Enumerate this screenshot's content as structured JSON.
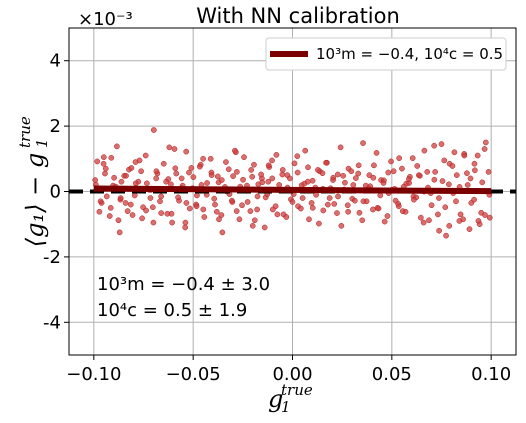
{
  "chart_data": {
    "type": "scatter",
    "title": "With NN calibration",
    "xlabel": "g_1^true",
    "ylabel": "⟨g_1⟩ − g_1^true",
    "x_tick_labels": [
      "−0.10",
      "−0.05",
      "0.00",
      "0.05",
      "0.10"
    ],
    "x_ticks": [
      -0.1,
      -0.05,
      0.0,
      0.05,
      0.1
    ],
    "y_tick_labels": [
      "-4",
      "-2",
      "0",
      "2",
      "4"
    ],
    "y_ticks": [
      -4,
      -2,
      0,
      2,
      4
    ],
    "y_scale_label": "×10⁻³",
    "xlim": [
      -0.1125,
      0.1125
    ],
    "ylim": [
      -5,
      5
    ],
    "grid": true,
    "legend": {
      "position": "top-right",
      "entries": [
        "10³m = −0.4, 10⁴c = 0.5"
      ]
    },
    "annotations": [
      "10³m = −0.4 ± 3.0",
      "10⁴c = 0.5 ± 1.9"
    ],
    "fit_line": {
      "m_1e3": -0.4,
      "c_1e4": 0.5
    },
    "reference_line_y": 0,
    "colors": {
      "points": "#cd3c3c",
      "points_edge": "#b22222",
      "fit_line": "#7a0000",
      "reference": "#000000"
    },
    "points_x": [
      -0.099,
      -0.0972,
      -0.0951,
      -0.0935,
      -0.0912,
      -0.0898,
      -0.0876,
      -0.0861,
      -0.084,
      -0.0823,
      -0.0805,
      -0.0788,
      -0.077,
      -0.0752,
      -0.0733,
      -0.0715,
      -0.0698,
      -0.068,
      -0.0661,
      -0.0643,
      -0.0625,
      -0.0606,
      -0.059,
      -0.0571,
      -0.0553,
      -0.0535,
      -0.0517,
      -0.0499,
      -0.0481,
      -0.0462,
      -0.0444,
      -0.0426,
      -0.0408,
      -0.039,
      -0.0372,
      -0.0353,
      -0.0335,
      -0.0317,
      -0.0299,
      -0.0281,
      -0.0263,
      -0.0244,
      -0.0226,
      -0.0208,
      -0.019,
      -0.0172,
      -0.0154,
      -0.0135,
      -0.0117,
      -0.0099,
      -0.0081,
      -0.0063,
      -0.0045,
      -0.0026,
      -0.0008,
      0.001,
      0.0028,
      0.0046,
      0.0064,
      0.0083,
      0.0101,
      0.0119,
      0.0137,
      0.0155,
      0.0173,
      0.0192,
      0.021,
      0.0228,
      0.0246,
      0.0264,
      0.0282,
      0.0301,
      0.0319,
      0.0337,
      0.0355,
      0.0373,
      0.0391,
      0.041,
      0.0428,
      0.0446,
      0.0464,
      0.0482,
      0.05,
      0.0519,
      0.0537,
      0.0555,
      0.0573,
      0.0591,
      0.0609,
      0.0628,
      0.0646,
      0.0664,
      0.0682,
      0.07,
      0.0718,
      0.0737,
      0.0755,
      0.0773,
      0.0791,
      0.0809,
      0.0827,
      0.0846,
      0.0864,
      0.0882,
      0.09,
      0.0918,
      0.0936,
      0.0955,
      0.0973,
      0.0991,
      -0.0983,
      -0.0961,
      -0.0944,
      -0.092,
      -0.0903,
      -0.0884,
      -0.0866,
      -0.0847,
      -0.083,
      -0.0811,
      -0.0794,
      -0.0776,
      -0.0757,
      -0.0739,
      -0.0721,
      -0.0703,
      -0.0685,
      -0.0667,
      -0.0648,
      -0.063,
      -0.0612,
      -0.0594,
      -0.0576,
      -0.0558,
      -0.0539,
      -0.0521,
      -0.0503,
      -0.0485,
      -0.0467,
      -0.0449,
      -0.043,
      -0.0412,
      -0.0394,
      -0.0376,
      -0.0358,
      -0.034,
      -0.0321,
      -0.0303,
      -0.0285,
      -0.0267,
      -0.0249,
      -0.0231,
      -0.0212,
      -0.0194,
      -0.0176,
      -0.0158,
      -0.014,
      -0.0122,
      -0.0103,
      -0.0085,
      -0.0067,
      -0.0049,
      -0.0031,
      -0.0013,
      0.0006,
      0.0024,
      0.0042,
      0.006,
      0.0078,
      0.0096,
      0.0115,
      0.0133,
      0.0151,
      0.0169,
      0.0187,
      0.0205,
      0.0224,
      0.0242,
      0.026,
      0.0278,
      0.0296,
      0.0314,
      0.0333,
      0.0351,
      0.0369,
      0.0387,
      0.0405,
      0.0423,
      0.0442,
      0.046,
      0.0478,
      0.0496,
      0.0514,
      0.0532,
      0.0551,
      0.0569,
      0.0587,
      0.0605,
      0.0623,
      0.0641,
      0.066,
      0.0678,
      0.0696,
      0.0714,
      0.0732,
      0.075,
      0.0769,
      0.0787,
      0.0805,
      0.0823,
      0.0841,
      0.0859,
      0.0878,
      0.0896,
      0.0914,
      0.0932,
      0.095,
      0.0969,
      0.0987,
      -0.0993,
      -0.0966,
      -0.094,
      -0.0915,
      -0.089,
      -0.0865,
      -0.0838,
      -0.0814,
      -0.0789,
      -0.0762,
      -0.0737,
      -0.0712,
      -0.0686,
      -0.0661,
      -0.0636,
      -0.0609,
      -0.0585,
      -0.0559,
      -0.0534,
      -0.0509,
      -0.0483,
      -0.0458,
      -0.0432,
      -0.0407,
      -0.0381,
      -0.0356,
      -0.0331,
      -0.0305,
      -0.028,
      -0.0254,
      -0.0229,
      -0.0203,
      -0.0178,
      -0.0152,
      -0.0127,
      -0.0102,
      -0.0076,
      -0.0051,
      -0.0025,
      0.0,
      0.0026,
      0.0051,
      0.0077,
      0.0102,
      0.0128,
      0.0153,
      0.0178,
      0.0204,
      0.0229,
      0.0255,
      0.028,
      0.0306,
      0.0331,
      0.0357,
      0.0382,
      0.0407,
      0.0433,
      0.0458,
      0.0484,
      0.0509,
      0.0535,
      0.056,
      0.0586,
      0.0611,
      0.0636,
      0.0662,
      0.0687,
      0.0713,
      0.0738,
      0.0764,
      0.0789,
      0.0815,
      0.084,
      0.0865,
      0.0891,
      0.0916,
      0.0942,
      0.0967,
      0.0993,
      -0.095,
      -0.087,
      -0.079,
      -0.07,
      -0.062,
      -0.054,
      -0.045,
      -0.037,
      -0.029,
      -0.02,
      -0.012,
      -0.004,
      0.005,
      0.013,
      0.021,
      0.03,
      0.038,
      0.046,
      0.055,
      0.063,
      0.071,
      0.08,
      0.088,
      0.096
    ],
    "points_y_1e3": [
      0.21,
      -0.62,
      0.85,
      -0.15,
      1.03,
      0.42,
      -0.88,
      0.3,
      -0.35,
      0.67,
      -0.72,
      0.12,
      0.95,
      -0.48,
      0.25,
      -0.2,
      1.88,
      0.55,
      -0.66,
      0.08,
      0.38,
      -0.95,
      0.71,
      -0.28,
      0.18,
      1.22,
      -0.52,
      0.44,
      -0.12,
      0.82,
      -0.78,
      0.06,
      0.58,
      -0.4,
      0.28,
      -1.25,
      0.9,
      -0.08,
      0.47,
      -0.6,
      0.15,
      1.05,
      -0.32,
      0.66,
      -0.88,
      0.22,
      0.4,
      -0.18,
      0.75,
      -0.55,
      1.12,
      0.03,
      -0.7,
      0.5,
      -0.24,
      0.86,
      -0.45,
      0.19,
      1.25,
      -0.85,
      0.33,
      -0.1,
      0.62,
      -0.58,
      0.88,
      0.1,
      -0.38,
      0.52,
      -1.05,
      0.27,
      0.7,
      -0.22,
      0.41,
      -0.65,
      1.48,
      -0.3,
      0.16,
      0.8,
      -0.5,
      0.35,
      -0.92,
      0.58,
      0.05,
      -0.28,
      1.02,
      -0.6,
      0.24,
      0.45,
      -0.15,
      0.78,
      -0.8,
      1.25,
      0.12,
      -0.42,
      0.6,
      -0.2,
      0.32,
      -1.35,
      0.85,
      -0.05,
      0.5,
      -0.7,
      1.15,
      0.2,
      -0.35,
      0.65,
      -0.9,
      0.28,
      1.5,
      -0.1,
      0.92,
      -0.35,
      0.55,
      -0.75,
      0.18,
      1.38,
      -0.25,
      0.48,
      -0.6,
      0.72,
      -0.12,
      0.3,
      -0.82,
      1.1,
      0.05,
      -0.48,
      0.62,
      -0.3,
      0.85,
      -0.68,
      0.22,
      1.3,
      -0.18,
      0.4,
      -0.95,
      0.58,
      0.1,
      -0.4,
      0.76,
      -0.55,
      0.26,
      1.0,
      -0.22,
      0.46,
      -0.72,
      0.14,
      0.68,
      -0.32,
      1.2,
      -0.85,
      0.36,
      0.02,
      -0.6,
      0.82,
      -0.15,
      0.52,
      -1.1,
      0.3,
      0.95,
      -0.45,
      0.2,
      0.66,
      -0.78,
      0.4,
      -0.08,
      1.08,
      -0.52,
      0.24,
      0.74,
      -0.35,
      0.12,
      -0.98,
      0.56,
      0.88,
      -0.2,
      0.42,
      -0.66,
      1.35,
      0.06,
      -0.42,
      0.62,
      -0.28,
      0.8,
      -0.88,
      0.18,
      0.5,
      -0.55,
      1.18,
      -0.12,
      0.34,
      -0.75,
      0.92,
      0.08,
      -0.38,
      0.7,
      -0.62,
      0.26,
      1.02,
      -0.18,
      0.48,
      -0.95,
      0.6,
      -0.05,
      0.36,
      -0.7,
      1.45,
      -0.48,
      0.22,
      0.78,
      -0.3,
      0.14,
      -0.85,
      0.56,
      0.4,
      -0.25,
      1.1,
      -0.65,
      -0.72,
      0.6,
      0.35,
      -0.3,
      0.7,
      -0.5,
      0.15,
      -0.2,
      0.48,
      -0.4,
      0.25,
      0.62,
      -0.58,
      0.05,
      0.4,
      -0.15,
      0.3,
      -0.68,
      0.55,
      0.1,
      -0.35,
      0.72,
      -0.45,
      0.2,
      -0.1,
      0.5,
      -0.62,
      0.35,
      0.0,
      -0.28,
      0.6,
      -0.42,
      0.18,
      0.45,
      -0.55,
      0.28,
      -0.08,
      0.4,
      -0.7,
      0.52,
      0.12,
      -0.32,
      0.58,
      -0.2,
      0.3,
      -0.5,
      0.66,
      0.08,
      -0.4,
      0.35,
      -0.15,
      0.48,
      -0.62,
      0.2,
      0.55,
      -0.3,
      0.1,
      0.42,
      -0.52,
      0.26,
      -0.05,
      0.62,
      -0.45,
      0.15,
      0.38,
      -0.25,
      0.5,
      0.0,
      -0.88,
      1.4,
      -1.2,
      0.95,
      -1.05,
      1.2,
      -0.9,
      1.1,
      -1.15,
      0.85,
      -1.0,
      1.3,
      -0.8,
      1.05,
      -1.25,
      0.9,
      -0.95,
      1.35,
      -1.1,
      1.0,
      -0.85,
      1.25,
      -1.05,
      0.8
    ]
  }
}
